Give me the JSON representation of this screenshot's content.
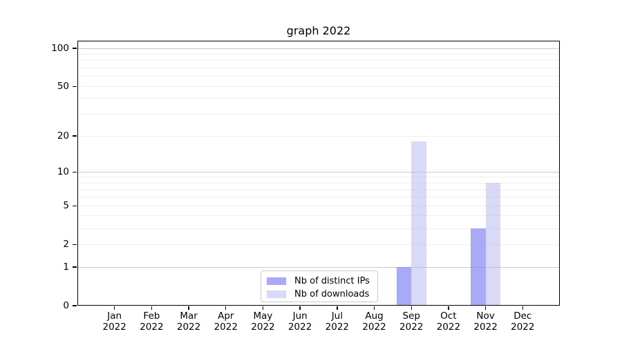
{
  "title": "graph 2022",
  "chart_data": {
    "type": "bar",
    "title": "graph 2022",
    "categories": [
      "Jan",
      "Feb",
      "Mar",
      "Apr",
      "May",
      "Jun",
      "Jul",
      "Aug",
      "Sep",
      "Oct",
      "Nov",
      "Dec"
    ],
    "category_year": "2022",
    "series": [
      {
        "name": "Nb of distinct IPs",
        "color": "rgba(140,140,242,0.75)",
        "values": [
          0,
          0,
          0,
          0,
          0,
          0,
          0,
          0,
          1,
          0,
          3,
          0
        ]
      },
      {
        "name": "Nb of downloads",
        "color": "rgba(179,179,241,0.5)",
        "values": [
          0,
          0,
          0,
          0,
          0,
          0,
          0,
          0,
          18,
          0,
          8,
          0
        ]
      }
    ],
    "xlabel": "",
    "ylabel": "",
    "yaxis": {
      "scale": "log2(1+y)",
      "tick_values": [
        0,
        1,
        2,
        5,
        10,
        20,
        50,
        100
      ],
      "major_gridlines": [
        1,
        10,
        100
      ],
      "minor_gridlines": [
        2,
        3,
        4,
        5,
        6,
        7,
        8,
        9,
        20,
        30,
        40,
        50,
        60,
        70,
        80,
        90
      ],
      "ylim": [
        0,
        116
      ]
    },
    "legend": {
      "position": "lower center inside",
      "entries": [
        "Nb of distinct IPs",
        "Nb of downloads"
      ]
    },
    "grid": true
  },
  "colors": {
    "background": "#ffffff",
    "axis": "#000000",
    "major_grid": "#c9c9c9",
    "minor_grid": "#efefef",
    "legend_border": "#cccccc",
    "bar_distinct_ips": "rgba(140,140,242,0.75)",
    "bar_downloads": "rgba(179,179,241,0.5)"
  }
}
